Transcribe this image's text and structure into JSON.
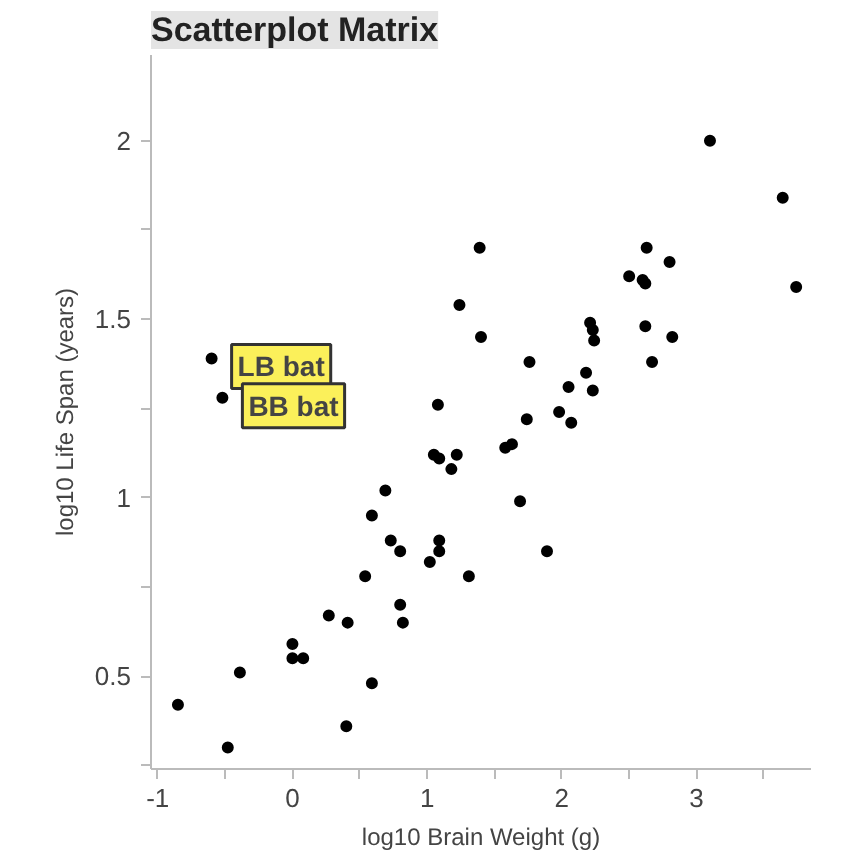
{
  "chart_data": {
    "type": "scatter",
    "title": "Scatterplot Matrix",
    "xlabel": "log10 Brain Weight (g)",
    "ylabel": "log10 Life Span (years)",
    "x": [
      -0.6,
      -0.52,
      3.1,
      3.64,
      3.74,
      1.39,
      2.63,
      2.8,
      2.5,
      2.6,
      2.62,
      1.24,
      1.4,
      2.21,
      2.23,
      2.24,
      2.62,
      2.82,
      2.67,
      1.76,
      2.18,
      2.05,
      2.23,
      1.08,
      1.98,
      2.07,
      1.74,
      1.58,
      1.63,
      1.05,
      1.09,
      1.22,
      1.18,
      0.69,
      0.59,
      0.73,
      0.8,
      0.54,
      0.8,
      0.82,
      0.41,
      0.27,
      0.0,
      0.0,
      0.08,
      -0.39,
      0.59,
      -0.85,
      0.4,
      -0.48,
      1.02,
      1.09,
      1.09,
      1.69,
      1.89,
      1.31
    ],
    "series": [
      {
        "color": "#000000",
        "values": [
          1.39,
          1.28,
          2.0,
          1.84,
          1.59,
          1.7,
          1.7,
          1.66,
          1.62,
          1.61,
          1.6,
          1.54,
          1.45,
          1.49,
          1.47,
          1.44,
          1.48,
          1.45,
          1.38,
          1.38,
          1.35,
          1.31,
          1.3,
          1.26,
          1.24,
          1.21,
          1.22,
          1.14,
          1.15,
          1.12,
          1.11,
          1.12,
          1.08,
          1.02,
          0.95,
          0.88,
          0.85,
          0.78,
          0.7,
          0.65,
          0.65,
          0.67,
          0.59,
          0.55,
          0.55,
          0.51,
          0.48,
          0.42,
          0.36,
          0.3,
          0.82,
          0.88,
          0.85,
          0.99,
          0.85,
          0.78
        ]
      }
    ],
    "xlim": [
      -1.05,
      3.85
    ],
    "ylim": [
      0.24,
      2.24
    ],
    "xticks": [
      -1,
      {
        "value": -0.5,
        "label": null
      },
      0,
      {
        "value": 0.5,
        "label": null
      },
      1,
      {
        "value": 1.5,
        "label": null
      },
      2,
      {
        "value": 2.5,
        "label": null
      },
      3,
      {
        "value": 3.5,
        "label": null
      }
    ],
    "yticks": [
      {
        "value": 0.25,
        "label": null
      },
      0.5,
      {
        "value": 0.75,
        "label": null
      },
      1,
      {
        "value": 1.25,
        "label": null
      },
      1.5,
      {
        "value": 1.75,
        "label": null
      },
      2
    ],
    "marker": "circle",
    "grid": false,
    "annotations": [
      {
        "text": "LB bat",
        "x": -0.6,
        "y": 1.39
      },
      {
        "text": "BB bat",
        "x": -0.52,
        "y": 1.28
      }
    ]
  }
}
